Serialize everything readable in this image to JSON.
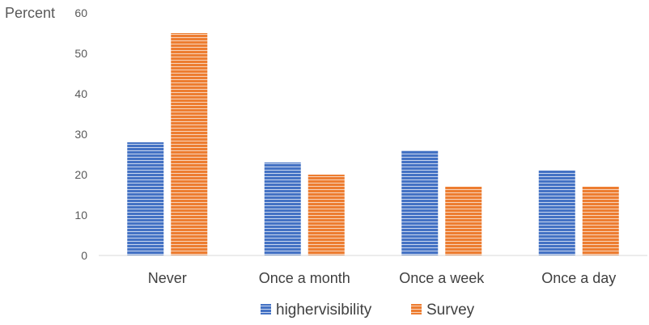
{
  "chart_data": {
    "type": "bar",
    "ylabel": "Percent",
    "xlabel": "",
    "title": "",
    "ylim": [
      0,
      60
    ],
    "yticks": [
      "0",
      "10",
      "20",
      "30",
      "40",
      "50",
      "60"
    ],
    "categories": [
      "Never",
      "Once a month",
      "Once a week",
      "Once a day"
    ],
    "series": [
      {
        "name": "highervisibility",
        "values": [
          28,
          23,
          26,
          21
        ],
        "color": "#4472C4"
      },
      {
        "name": "Survey",
        "values": [
          55,
          20,
          17,
          17
        ],
        "color": "#ED7D31"
      }
    ],
    "legend_position": "bottom",
    "grid": false
  }
}
